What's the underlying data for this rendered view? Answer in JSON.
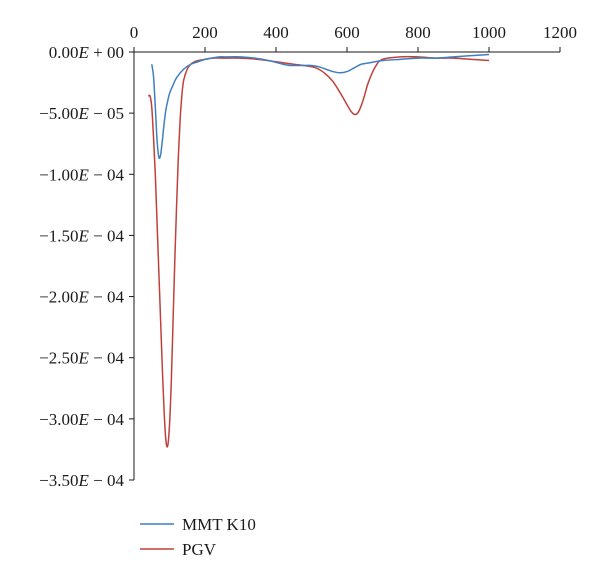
{
  "chart_data": {
    "type": "line",
    "title": "",
    "xlabel": "",
    "ylabel": "",
    "xlim": [
      0,
      1200
    ],
    "ylim": [
      -0.00035,
      0
    ],
    "x_ticks": [
      0,
      200,
      400,
      600,
      800,
      1000,
      1200
    ],
    "x_tick_labels": [
      "0",
      "200",
      "400",
      "600",
      "800",
      "1000",
      "1200"
    ],
    "y_ticks": [
      0,
      -5e-05,
      -0.0001,
      -0.00015,
      -0.0002,
      -0.00025,
      -0.0003,
      -0.00035
    ],
    "y_tick_labels": [
      [
        "0.00",
        "+ 00"
      ],
      [
        "−5.00",
        "− 05"
      ],
      [
        "−1.00",
        "− 04"
      ],
      [
        "−1.50",
        "− 04"
      ],
      [
        "−2.00",
        "− 04"
      ],
      [
        "−2.50",
        "− 04"
      ],
      [
        "−3.00",
        "− 04"
      ],
      [
        "−3.50",
        "− 04"
      ]
    ],
    "x_axis_position": "top",
    "grid": false,
    "legend_position": "bottom-left",
    "series": [
      {
        "name": "MMT K10",
        "color": "#3f7fbf",
        "x": [
          50,
          55,
          60,
          65,
          70,
          75,
          80,
          85,
          90,
          95,
          100,
          110,
          120,
          140,
          160,
          180,
          200,
          220,
          240,
          260,
          300,
          340,
          380,
          420,
          440,
          460,
          480,
          500,
          520,
          540,
          560,
          580,
          600,
          620,
          640,
          660,
          700,
          750,
          800,
          850,
          900,
          950,
          1000
        ],
        "y": [
          -1e-05,
          -2e-05,
          -4.5e-05,
          -7.2e-05,
          -8.6e-05,
          -8.4e-05,
          -7.2e-05,
          -5.8e-05,
          -4.7e-05,
          -4e-05,
          -3.4e-05,
          -2.7e-05,
          -2.1e-05,
          -1.4e-05,
          -1e-05,
          -8e-06,
          -6e-06,
          -5e-06,
          -4e-06,
          -4e-06,
          -4e-06,
          -5e-06,
          -7e-06,
          -1e-05,
          -1.1e-05,
          -1.1e-05,
          -1.1e-05,
          -1.1e-05,
          -1.2e-05,
          -1.4e-05,
          -1.6e-05,
          -1.7e-05,
          -1.6e-05,
          -1.3e-05,
          -1e-05,
          -9e-06,
          -7e-06,
          -6e-06,
          -5e-06,
          -5e-06,
          -4e-06,
          -3e-06,
          -2e-06
        ]
      },
      {
        "name": "PGV",
        "color": "#c0403a",
        "x": [
          40,
          45,
          50,
          55,
          60,
          65,
          70,
          75,
          80,
          85,
          90,
          95,
          100,
          105,
          110,
          115,
          120,
          125,
          130,
          135,
          140,
          150,
          160,
          170,
          180,
          200,
          220,
          250,
          300,
          350,
          400,
          450,
          500,
          520,
          540,
          560,
          580,
          600,
          610,
          620,
          630,
          640,
          650,
          660,
          680,
          700,
          750,
          800,
          850,
          900,
          950,
          1000
        ],
        "y": [
          -3.6e-05,
          -3.6e-05,
          -4.5e-05,
          -7e-05,
          -0.0001,
          -0.00014,
          -0.00018,
          -0.00022,
          -0.00026,
          -0.000295,
          -0.000318,
          -0.000322,
          -0.000305,
          -0.00027,
          -0.00022,
          -0.00017,
          -0.000125,
          -8.5e-05,
          -5.5e-05,
          -3.5e-05,
          -2.3e-05,
          -1.4e-05,
          -1e-05,
          -8e-06,
          -7e-06,
          -6e-06,
          -5e-06,
          -5e-06,
          -5e-06,
          -6e-06,
          -8e-06,
          -1e-05,
          -1.2e-05,
          -1.4e-05,
          -1.8e-05,
          -2.4e-05,
          -3.3e-05,
          -4.3e-05,
          -4.8e-05,
          -5.1e-05,
          -5e-05,
          -4.4e-05,
          -3.5e-05,
          -2.5e-05,
          -1.2e-05,
          -6e-06,
          -4e-06,
          -4e-06,
          -5e-06,
          -5e-06,
          -6e-06,
          -7e-06
        ]
      }
    ]
  }
}
